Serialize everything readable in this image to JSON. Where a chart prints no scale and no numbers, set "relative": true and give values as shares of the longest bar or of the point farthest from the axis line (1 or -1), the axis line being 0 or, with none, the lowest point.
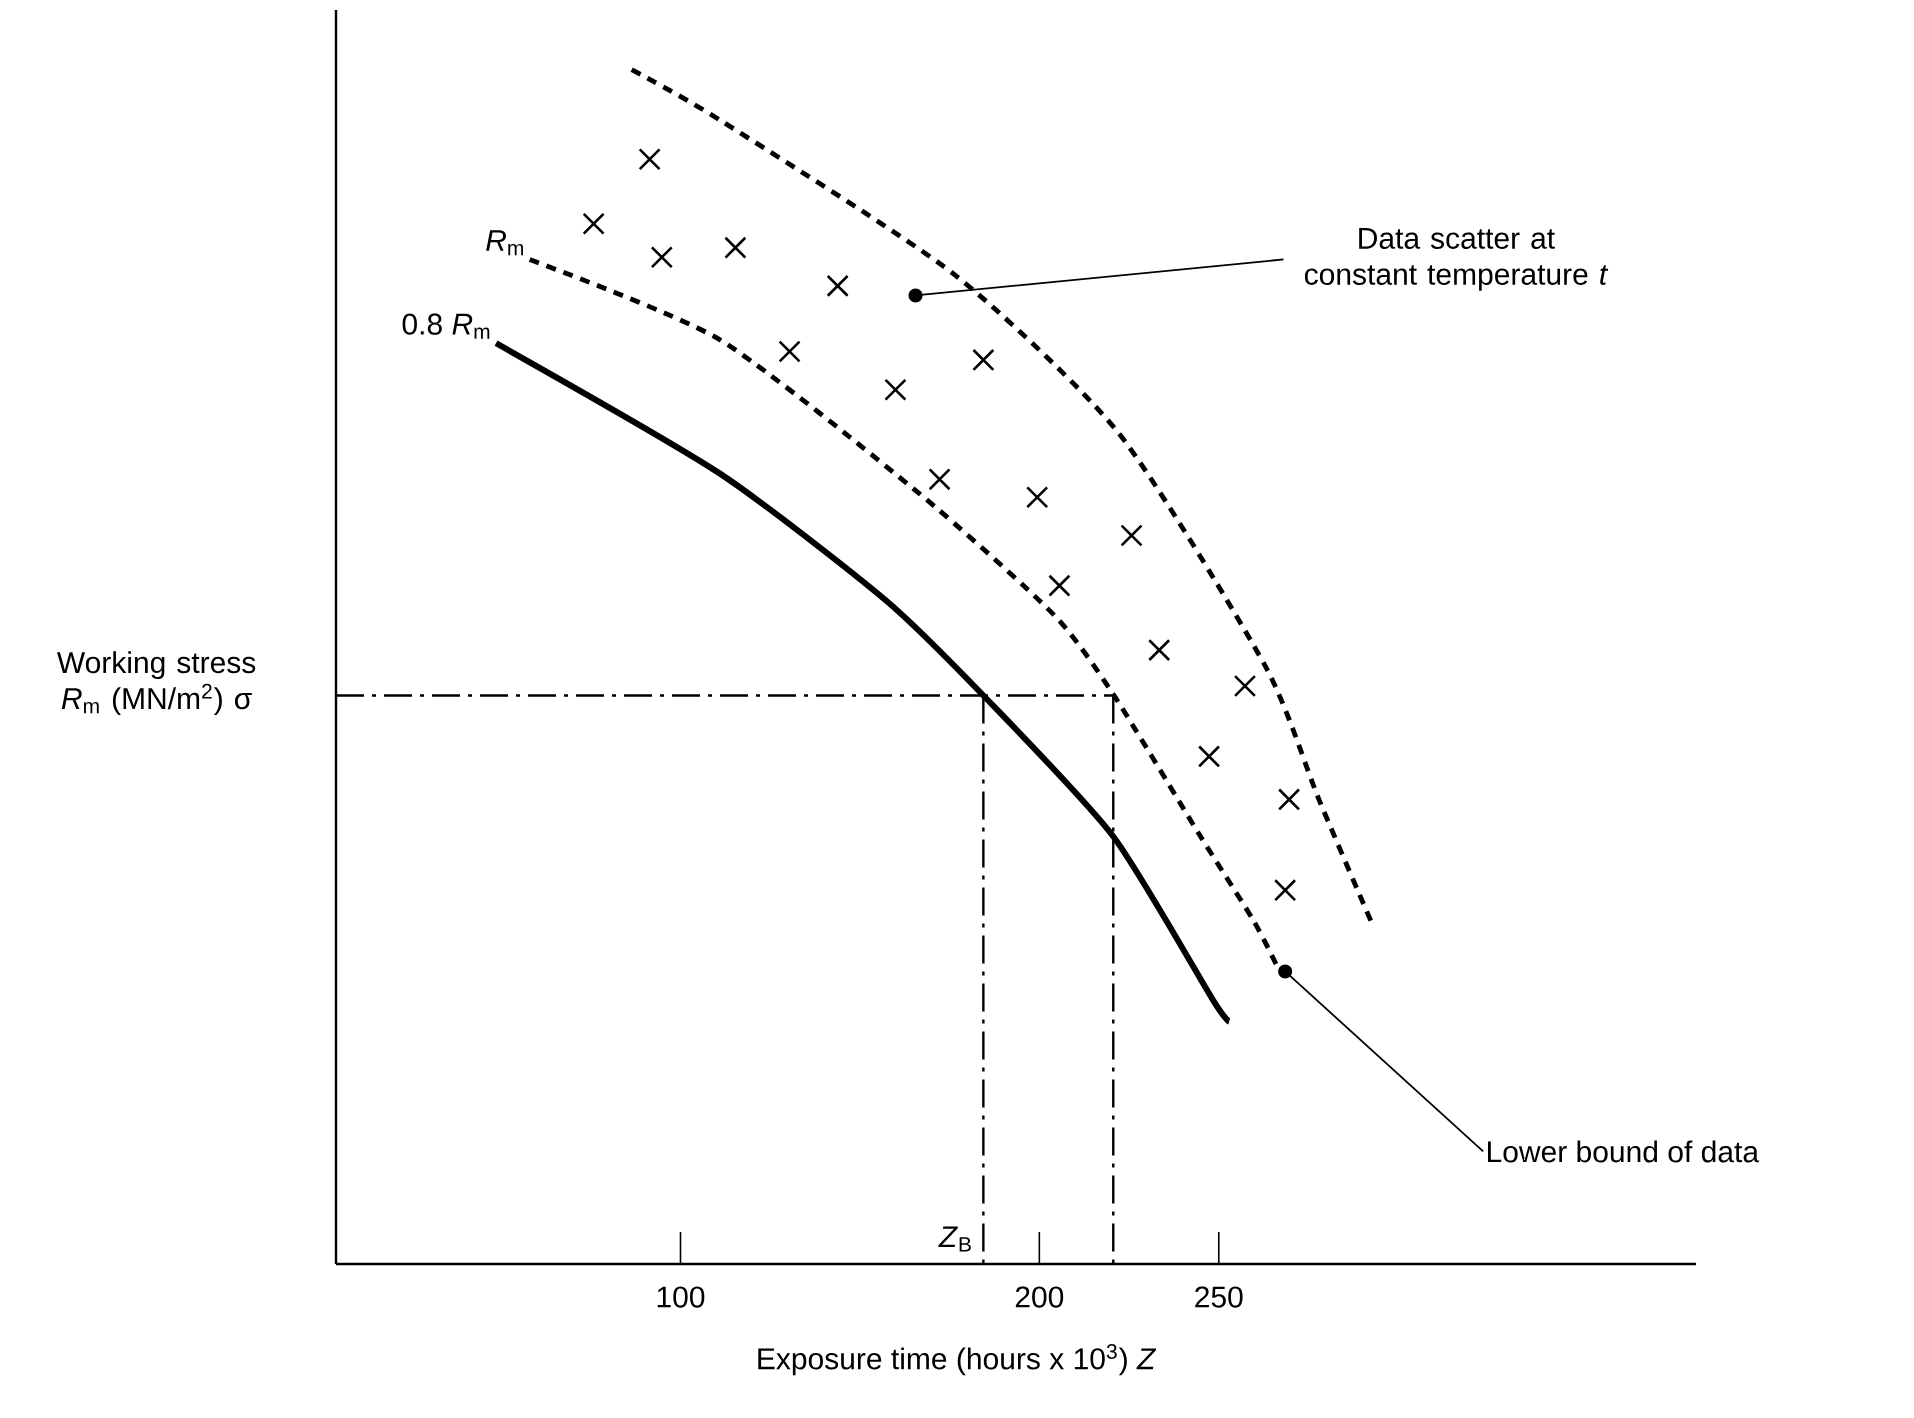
{
  "chart_data": {
    "type": "line",
    "relative": true,
    "xlabel": "Exposure time (hours x 10$^{3}$) *Z*",
    "ylabel": "Working stress *R*$_{m}$ (MN/m$^{2}$) σ",
    "xlim": [
      4,
      383
    ],
    "xticks": [
      100,
      200,
      250
    ],
    "series": [
      {
        "color": "#000000",
        "line_style": "dashed",
        "marker": "none",
        "x": [
          86.4,
          110.9,
          176.1,
          222.3,
          262.9,
          277.9,
          293.0
        ],
        "values": [
          1.0,
          0.958,
          0.829,
          0.695,
          0.501,
          0.389,
          0.283
        ]
      },
      {
        "name": "*R*$_{m}$",
        "color": "#000000",
        "line_style": "dashed",
        "marker": "none",
        "x": [
          58.0,
          110.9,
          166.6,
          203.9,
          220.6,
          244.5,
          259.6,
          266.8
        ],
        "values": [
          0.841,
          0.774,
          0.645,
          0.544,
          0.477,
          0.36,
          0.288,
          0.246
        ]
      },
      {
        "name": "0.8 *R*$_{m}$",
        "color": "#000000",
        "line_style": "solid",
        "marker": "none",
        "x": [
          48.6,
          110.9,
          157.1,
          184.4,
          220.6,
          248.4,
          252.9
        ],
        "values": [
          0.771,
          0.662,
          0.556,
          0.476,
          0.358,
          0.221,
          0.203
        ]
      },
      {
        "type": "scatter",
        "color": "#000000",
        "marker": "cross",
        "x": [
          91.4,
          75.8,
          94.8,
          115.3,
          143.8,
          130.4,
          159.9,
          184.4,
          172.2,
          199.4,
          205.6,
          225.7,
          233.4,
          257.3,
          247.3,
          269.6,
          268.5
        ],
        "values": [
          0.925,
          0.871,
          0.843,
          0.851,
          0.819,
          0.764,
          0.732,
          0.757,
          0.657,
          0.642,
          0.568,
          0.61,
          0.514,
          0.484,
          0.425,
          0.389,
          0.313
        ]
      },
      {
        "color": "#000000",
        "line_style": "dashdot",
        "marker": "none",
        "x": [
          4,
          220.6
        ],
        "values": [
          0.476,
          0.476
        ]
      },
      {
        "color": "#000000",
        "line_style": "dashdot",
        "marker": "none",
        "x": [
          184.4,
          184.4
        ],
        "values": [
          0.476,
          0
        ]
      },
      {
        "color": "#000000",
        "line_style": "dashdot",
        "marker": "none",
        "x": [
          220.6,
          220.6
        ],
        "values": [
          0.476,
          0
        ]
      }
    ],
    "annotations": [
      {
        "text": "Data scatter at constant temperature *t*",
        "x": 165.5,
        "y": 0.811
      },
      {
        "text": "Lower bound of data",
        "x": 268.5,
        "y": 0.245
      },
      {
        "text": "*Z*$_{B}$",
        "x": 184.4,
        "y": 0
      }
    ]
  }
}
